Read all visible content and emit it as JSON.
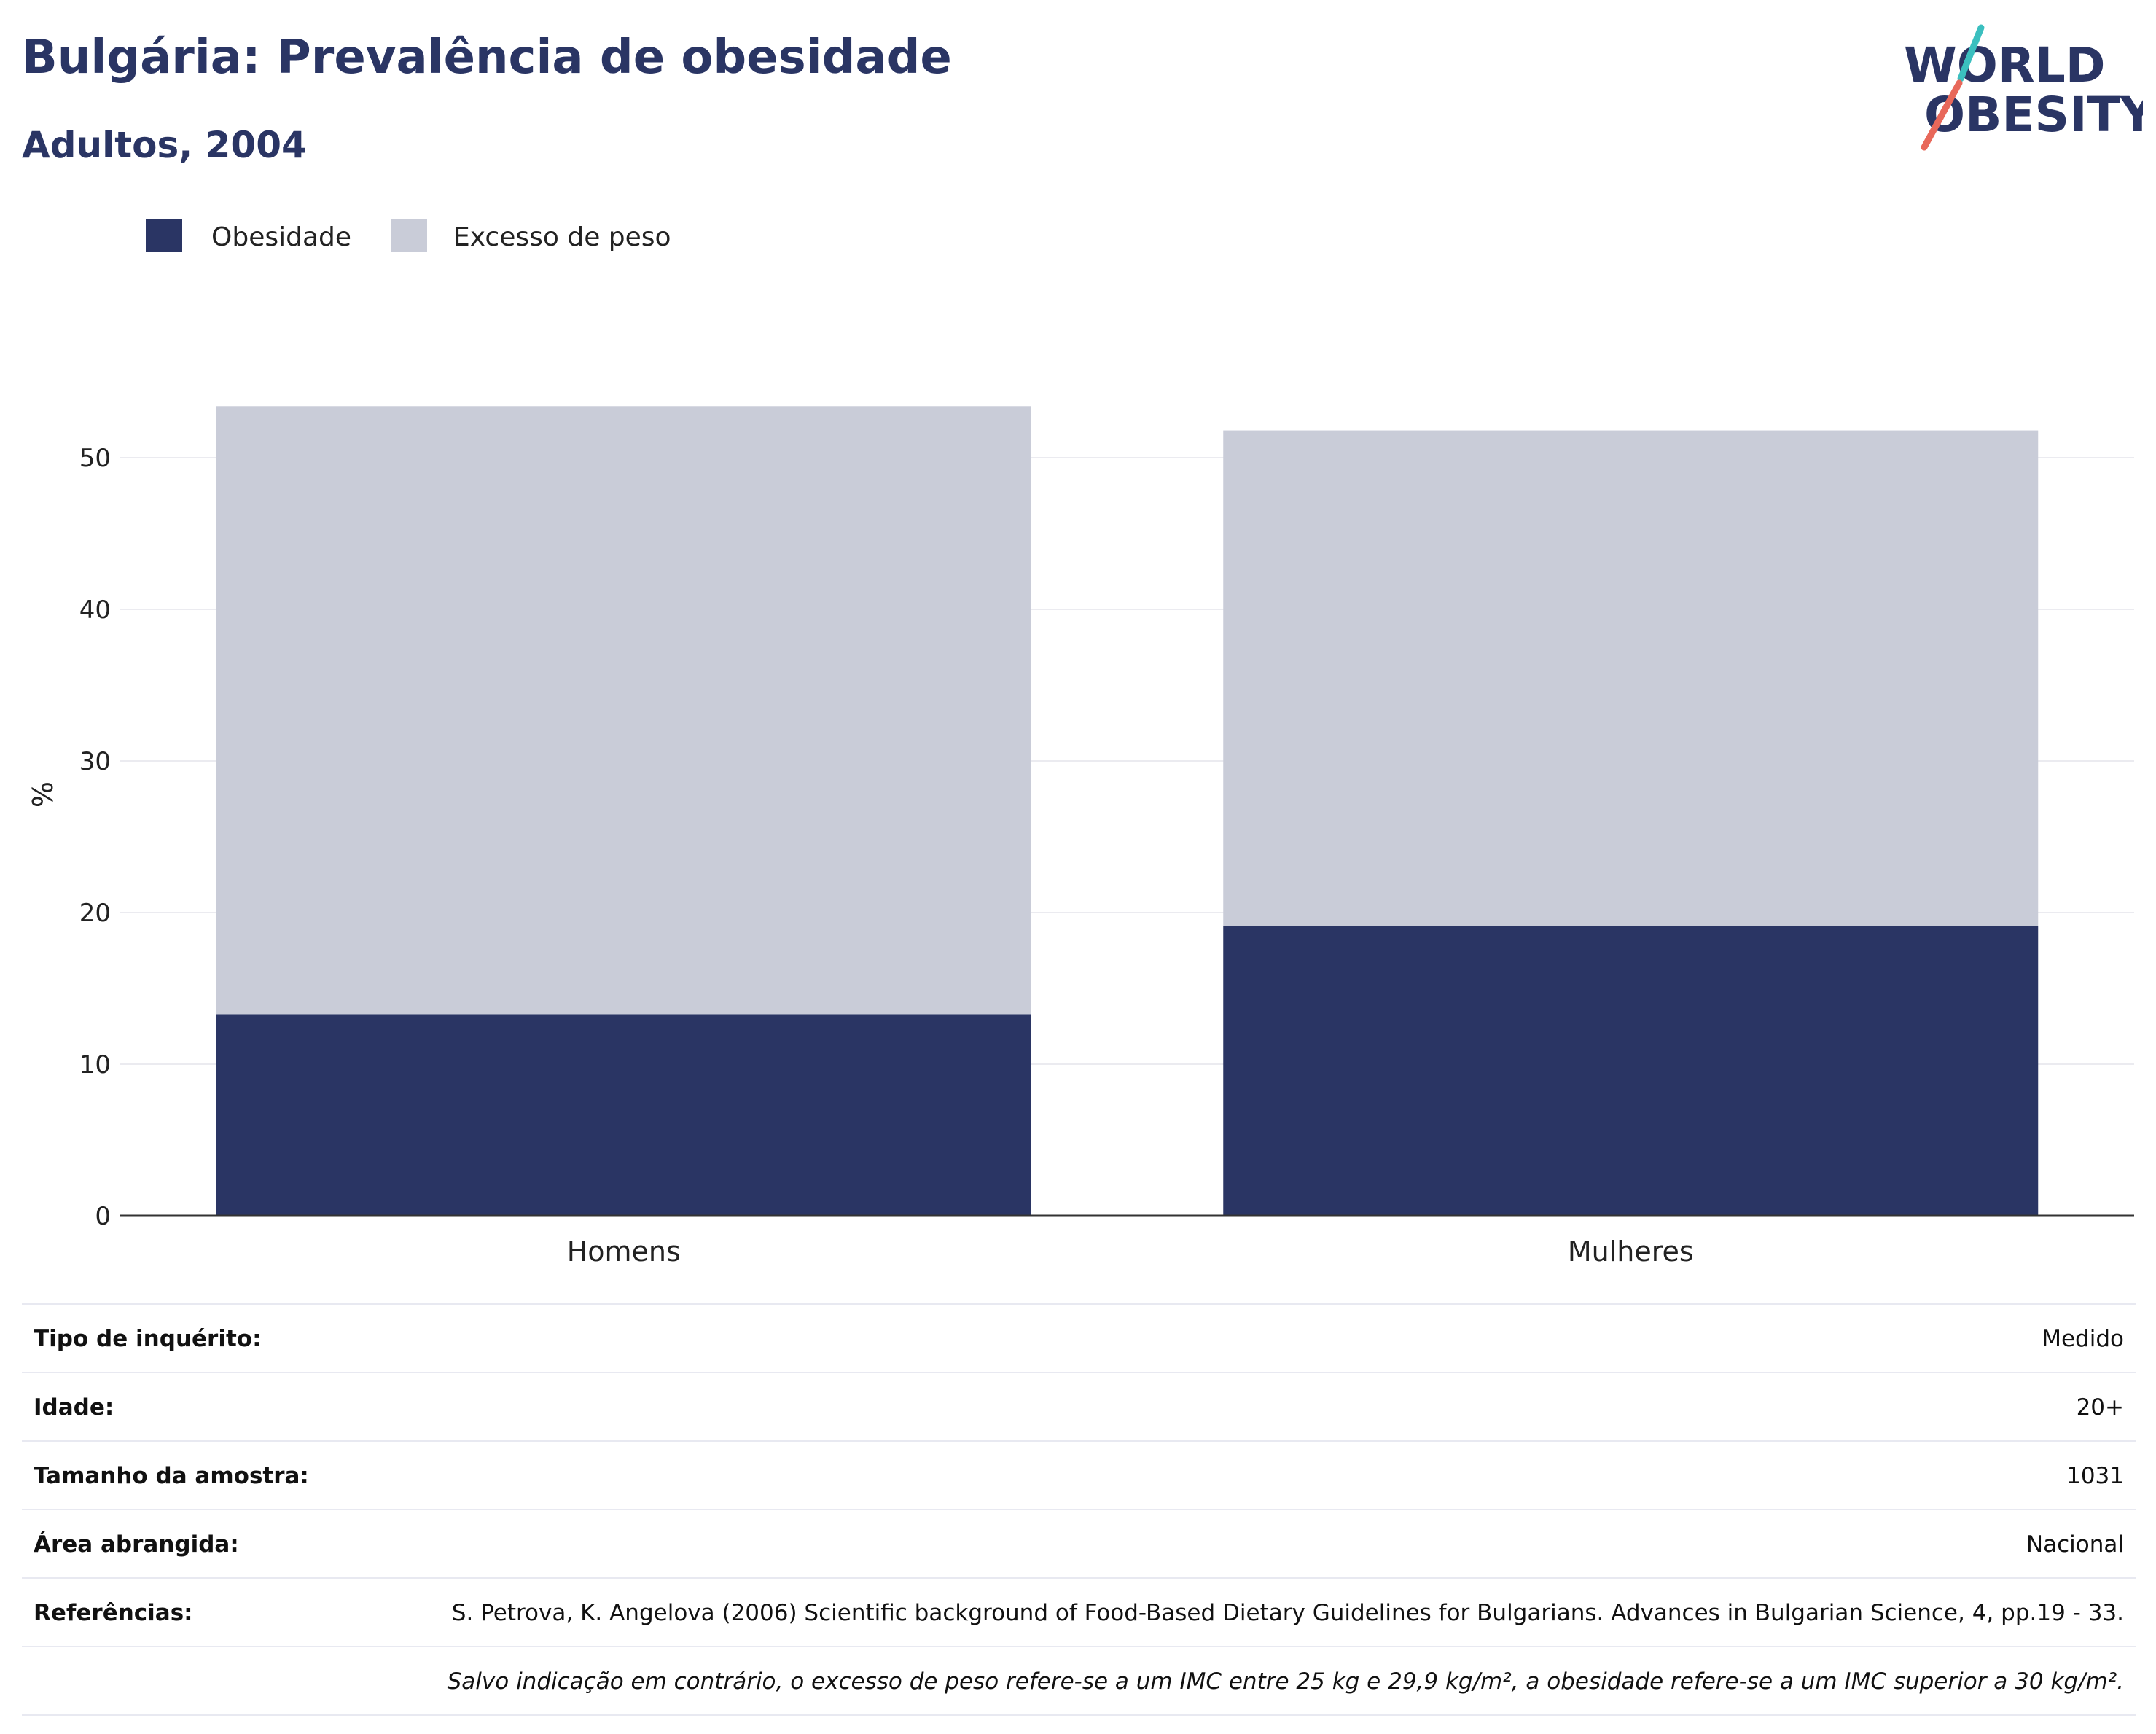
{
  "header": {
    "title": "Bulgária: Prevalência de obesidade",
    "subtitle": "Adultos, 2004"
  },
  "logo": {
    "line1": "WORLD",
    "line2": "OBESITY",
    "slash_colors": [
      "#3bbfbf",
      "#e8685a"
    ]
  },
  "colors": {
    "obesity": "#2a3564",
    "overweight": "#c9ccd8",
    "grid": "#ebebf0",
    "text": "#2a3564"
  },
  "chart_data": {
    "type": "bar",
    "stacked": true,
    "categories": [
      "Homens",
      "Mulheres"
    ],
    "series": [
      {
        "name": "Obesidade",
        "values": [
          13.3,
          19.1
        ]
      },
      {
        "name": "Excesso de peso",
        "values": [
          40.1,
          32.7
        ]
      }
    ],
    "ylabel": "%",
    "yticks": [
      0,
      10,
      20,
      30,
      40,
      50
    ],
    "ylim": [
      0,
      54
    ],
    "legend_position": "top-left",
    "grid": true
  },
  "info": {
    "rows": [
      {
        "label": "Tipo de inquérito:",
        "value": "Medido"
      },
      {
        "label": "Idade:",
        "value": "20+"
      },
      {
        "label": "Tamanho da amostra:",
        "value": "1031"
      },
      {
        "label": "Área abrangida:",
        "value": "Nacional"
      },
      {
        "label": "Referências:",
        "value": "S. Petrova, K. Angelova (2006) Scientific background of Food-Based Dietary Guidelines for Bulgarians. Advances in Bulgarian Science, 4, pp.19 - 33."
      }
    ],
    "note": "Salvo indicação em contrário, o excesso de peso refere-se a um IMC entre 25 kg e 29,9 kg/m², a obesidade refere-se a um IMC superior a 30 kg/m²."
  }
}
